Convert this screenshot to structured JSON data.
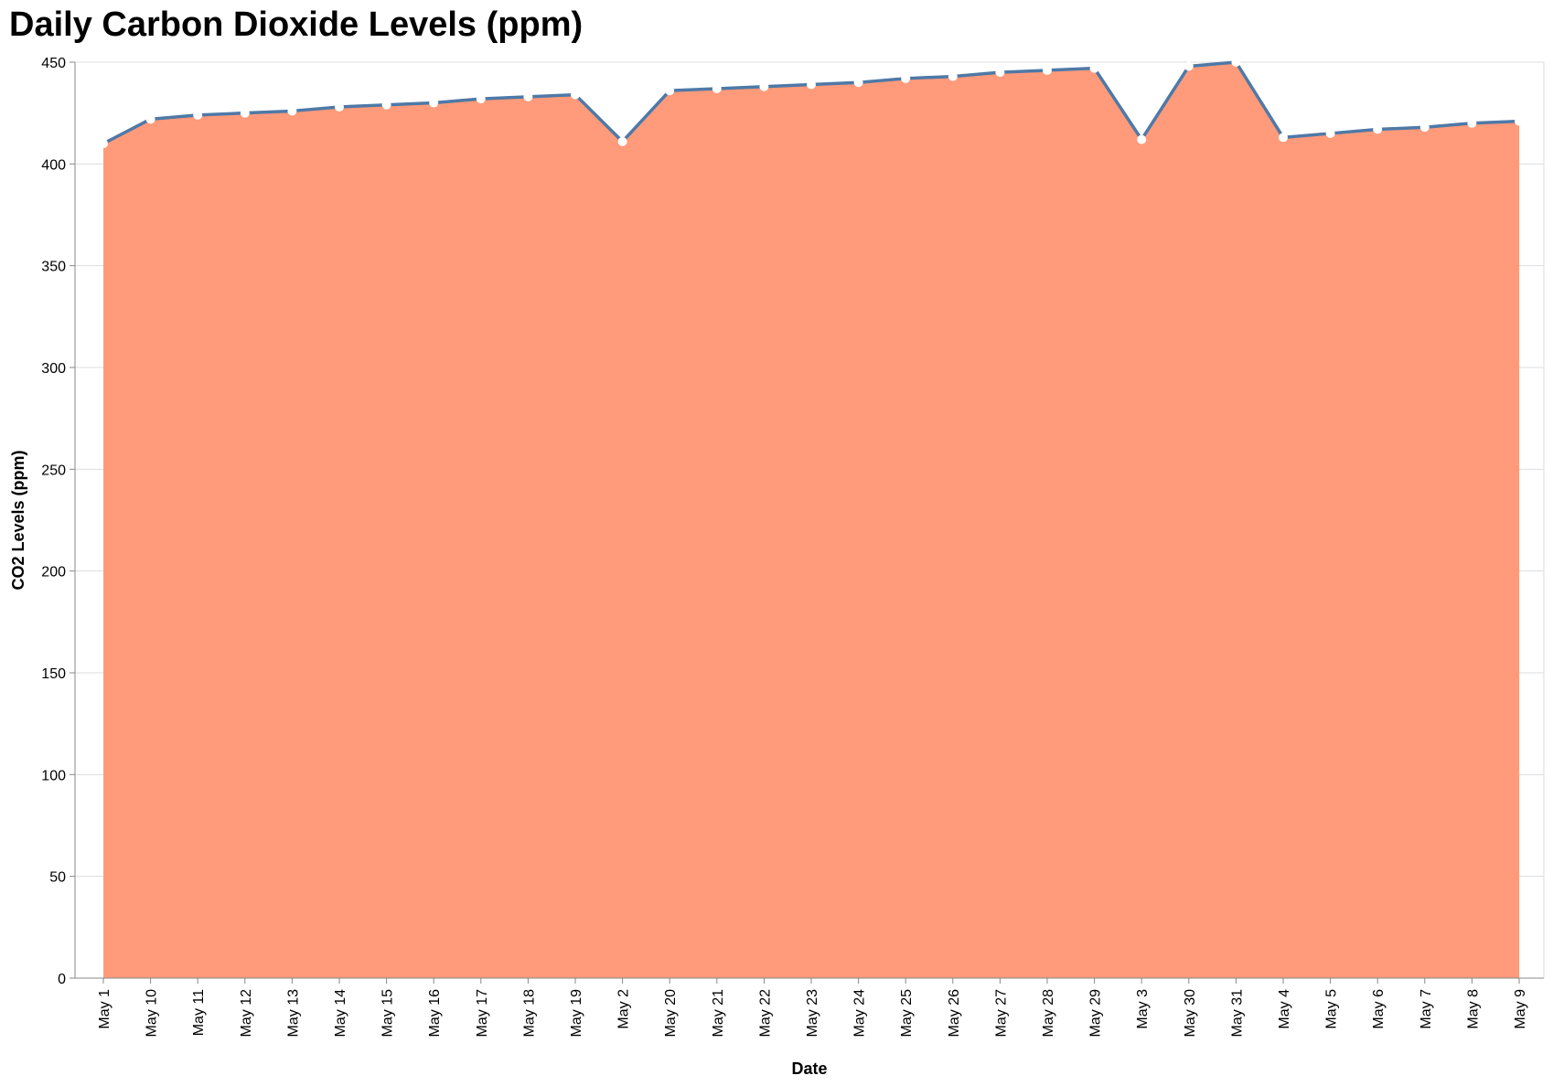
{
  "chart_data": {
    "type": "area",
    "title": "Daily Carbon Dioxide Levels (ppm)",
    "xlabel": "Date",
    "ylabel": "CO2 Levels (ppm)",
    "ylim": [
      0,
      450
    ],
    "y_ticks": [
      0,
      50,
      100,
      150,
      200,
      250,
      300,
      350,
      400,
      450
    ],
    "grid": true,
    "categories": [
      "May 1",
      "May 10",
      "May 11",
      "May 12",
      "May 13",
      "May 14",
      "May 15",
      "May 16",
      "May 17",
      "May 18",
      "May 19",
      "May 2",
      "May 20",
      "May 21",
      "May 22",
      "May 23",
      "May 24",
      "May 25",
      "May 26",
      "May 27",
      "May 28",
      "May 29",
      "May 3",
      "May 30",
      "May 31",
      "May 4",
      "May 5",
      "May 6",
      "May 7",
      "May 8",
      "May 9"
    ],
    "values": [
      410,
      422,
      424,
      425,
      426,
      428,
      429,
      430,
      432,
      433,
      434,
      411,
      436,
      437,
      438,
      439,
      440,
      442,
      443,
      445,
      446,
      447,
      412,
      448,
      450,
      413,
      415,
      417,
      418,
      420,
      421
    ],
    "colors": {
      "area": "#ff9a7a",
      "line": "#4e79a7",
      "point_fill": "#ffffff",
      "grid": "#dddddd",
      "axis": "#888888"
    }
  }
}
